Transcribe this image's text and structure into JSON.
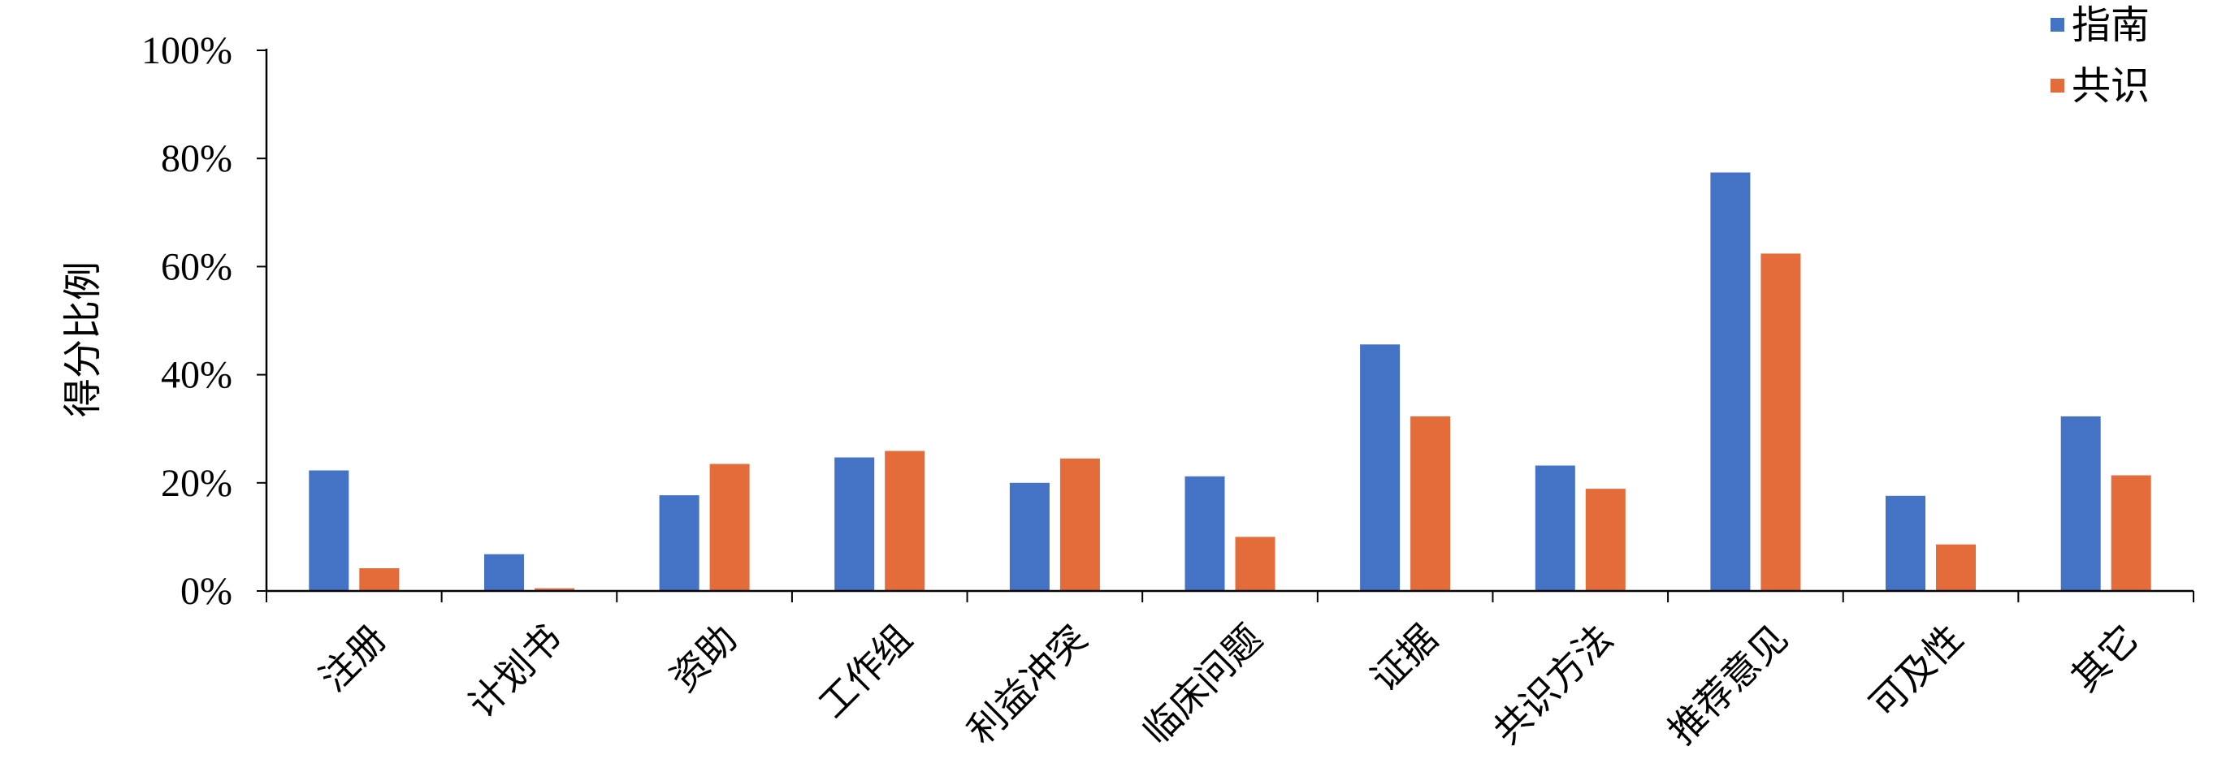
{
  "chart_data": {
    "type": "bar",
    "title": "",
    "xlabel": "",
    "ylabel": "得分比例",
    "ylim": [
      0,
      100
    ],
    "y_ticks": [
      "0%",
      "20%",
      "40%",
      "60%",
      "80%",
      "100%"
    ],
    "grid": false,
    "legend_position": "top-right",
    "categories": [
      "注册",
      "计划书",
      "资助",
      "工作组",
      "利益冲突",
      "临床问题",
      "证据",
      "共识方法",
      "推荐意见",
      "可及性",
      "其它"
    ],
    "series": [
      {
        "name": "指南",
        "color": "#4472C4",
        "values": [
          22.3,
          6.8,
          17.7,
          24.7,
          20.0,
          21.2,
          45.6,
          23.2,
          77.4,
          17.6,
          32.3
        ]
      },
      {
        "name": "共识",
        "color": "#E46C3A",
        "values": [
          4.2,
          0.5,
          23.5,
          25.9,
          24.5,
          10.0,
          32.3,
          18.9,
          62.4,
          8.6,
          21.4
        ]
      }
    ]
  }
}
